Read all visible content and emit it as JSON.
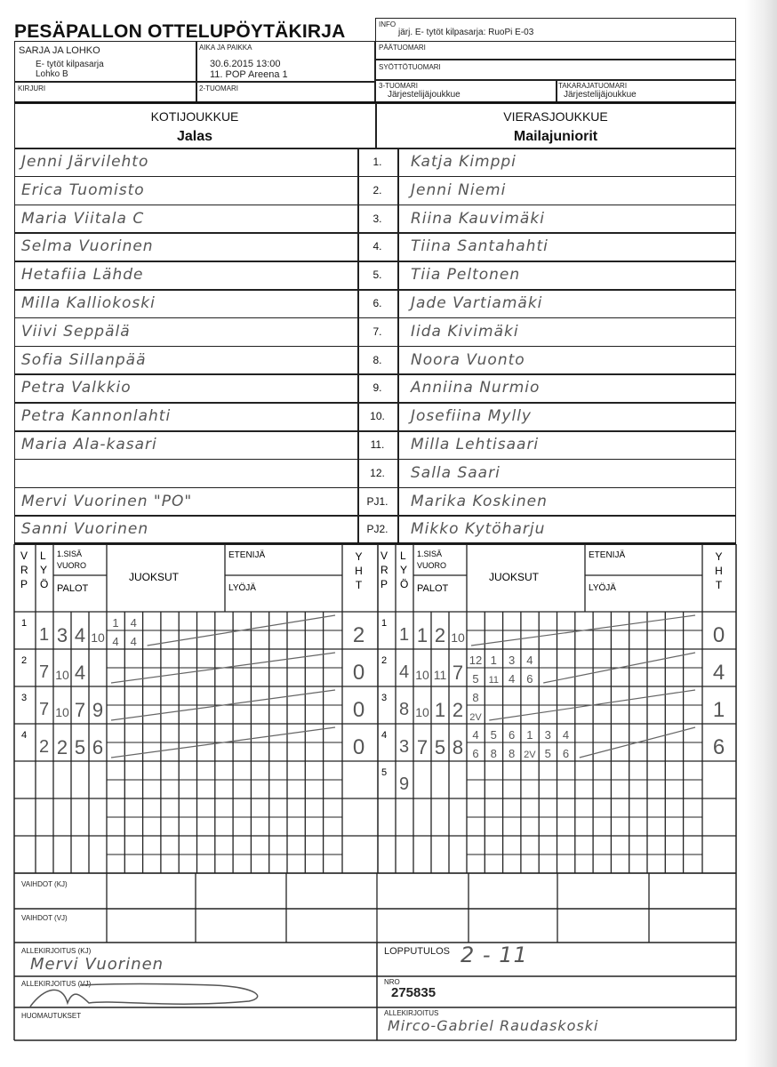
{
  "header": {
    "title": "PESÄPALLON OTTELUPÖYTÄKIRJA",
    "info_label": "INFO",
    "info_value": "järj. E- tytöt kilpasarja: RuoPi E-03",
    "sarja_label": "SARJA JA LOHKO",
    "sarja_value1": "E- tytöt kilpasarja",
    "sarja_value2": "Lohko B",
    "aika_label": "AIKA JA PAIKKA",
    "aika_value1": "30.6.2015 13:00",
    "aika_value2": "11. POP Areena 1",
    "paatuomari_label": "PÄÄTUOMARI",
    "syottotuomari_label": "SYÖTTÖTUOMARI",
    "kirjuri_label": "KIRJURI",
    "tuomari2_label": "2-TUOMARI",
    "tuomari3_label": "3-TUOMARI",
    "tuomari3_value": "Järjestelijäjoukkue",
    "takaraja_label": "TAKARAJATUOMARI",
    "takaraja_value": "Järjestelijäjoukkue"
  },
  "teams": {
    "home_label": "KOTIJOUKKUE",
    "home_name": "Jalas",
    "away_label": "VIERASJOUKKUE",
    "away_name": "Mailajuniorit"
  },
  "roster": [
    {
      "no": "1.",
      "home": "Jenni Järvilehto",
      "away": "Katja Kimppi"
    },
    {
      "no": "2.",
      "home": "Erica Tuomisto",
      "away": "Jenni Niemi"
    },
    {
      "no": "3.",
      "home": "Maria Viitala   C",
      "away": "Riina Kauvimäki"
    },
    {
      "no": "4.",
      "home": "Selma Vuorinen",
      "away": "Tiina Santahahti"
    },
    {
      "no": "5.",
      "home": "Hetafiia Lähde",
      "away": "Tiia Peltonen"
    },
    {
      "no": "6.",
      "home": "Milla Kalliokoski",
      "away": "Jade Vartiamäki"
    },
    {
      "no": "7.",
      "home": "Viivi Seppälä",
      "away": "Iida Kivimäki"
    },
    {
      "no": "8.",
      "home": "Sofia Sillanpää",
      "away": "Noora Vuonto"
    },
    {
      "no": "9.",
      "home": "Petra Valkkio",
      "away": "Anniina Nurmio"
    },
    {
      "no": "10.",
      "home": "Petra Kannonlahti",
      "away": "Josefiina Mylly"
    },
    {
      "no": "11.",
      "home": "Maria Ala-kasari",
      "away": "Milla Lehtisaari"
    },
    {
      "no": "12.",
      "home": "",
      "away": "Salla Saari"
    },
    {
      "no": "PJ1.",
      "home": "Mervi Vuorinen \"PO\"",
      "away": "Marika Koskinen"
    },
    {
      "no": "PJ2.",
      "home": "Sanni Vuorinen",
      "away": "Mikko Kytöharju"
    }
  ],
  "score_header": {
    "v": "V",
    "r": "R",
    "p": "P",
    "l": "L",
    "y": "Y",
    "o": "Ö",
    "sisa": "1.SISÄ",
    "vuoro": "VUORO",
    "palot": "PALOT",
    "juoksut": "JUOKSUT",
    "etenija": "ETENIJÄ",
    "lyoja": "LYÖJÄ",
    "yht_h": "H",
    "yht_t": "T"
  },
  "innings": {
    "home": [
      {
        "vrp": "1",
        "lyo": "1",
        "palot": [
          "3",
          "4",
          "10"
        ],
        "runs": [
          [
            "1",
            "4"
          ],
          [
            "4",
            "4"
          ]
        ],
        "yht": "2"
      },
      {
        "vrp": "2",
        "lyo": "7",
        "palot": [
          "10",
          "4",
          ""
        ],
        "runs": [],
        "yht": "0"
      },
      {
        "vrp": "3",
        "lyo": "7",
        "palot": [
          "10",
          "7",
          "9"
        ],
        "runs": [],
        "yht": "0"
      },
      {
        "vrp": "4",
        "lyo": "2",
        "palot": [
          "2",
          "5",
          "6"
        ],
        "runs": [],
        "yht": "0"
      }
    ],
    "away": [
      {
        "vrp": "1",
        "lyo": "1",
        "palot": [
          "1",
          "2",
          "10"
        ],
        "runs": [],
        "yht": "0"
      },
      {
        "vrp": "2",
        "lyo": "4",
        "palot": [
          "10",
          "11",
          "7"
        ],
        "runs": [
          [
            "12",
            "5"
          ],
          [
            "1",
            "11"
          ],
          [
            "3",
            "4"
          ],
          [
            "4",
            "6"
          ]
        ],
        "yht": "4"
      },
      {
        "vrp": "3",
        "lyo": "8",
        "palot": [
          "10",
          "1",
          "2"
        ],
        "runs": [
          [
            "8",
            "2V"
          ]
        ],
        "yht": "1"
      },
      {
        "vrp": "4",
        "lyo": "3",
        "palot": [
          "7",
          "5",
          "8"
        ],
        "runs": [
          [
            "4",
            "6"
          ],
          [
            "5",
            "8"
          ],
          [
            "6",
            "8"
          ],
          [
            "1",
            "2V"
          ],
          [
            "3",
            "5"
          ],
          [
            "4",
            "6"
          ]
        ],
        "yht": "6"
      },
      {
        "vrp": "5",
        "lyo": "9",
        "palot": [
          "",
          "",
          ""
        ],
        "runs": [],
        "yht": ""
      }
    ]
  },
  "footer": {
    "vaihdot_kj": "VAIHDOT (KJ)",
    "vaihdot_vj": "VAIHDOT (VJ)",
    "allekirjoitus_kj": "ALLEKIRJOITUS (KJ)",
    "allekirjoitus_kj_sig": "Mervi Vuorinen",
    "allekirjoitus_vj": "ALLEKIRJOITUS (VJ)",
    "huomautukset": "HUOMAUTUKSET",
    "lopputulos_label": "LOPPUTULOS",
    "lopputulos_value": "2 - 11",
    "nro_label": "NRO",
    "nro_value": "275835",
    "allekirjoitus_label": "ALLEKIRJOITUS",
    "allekirjoitus_sig": "Mirco-Gabriel Raudaskoski"
  },
  "colors": {
    "ink": "#222222",
    "handwriting": "#555555",
    "paper": "#ffffff"
  }
}
